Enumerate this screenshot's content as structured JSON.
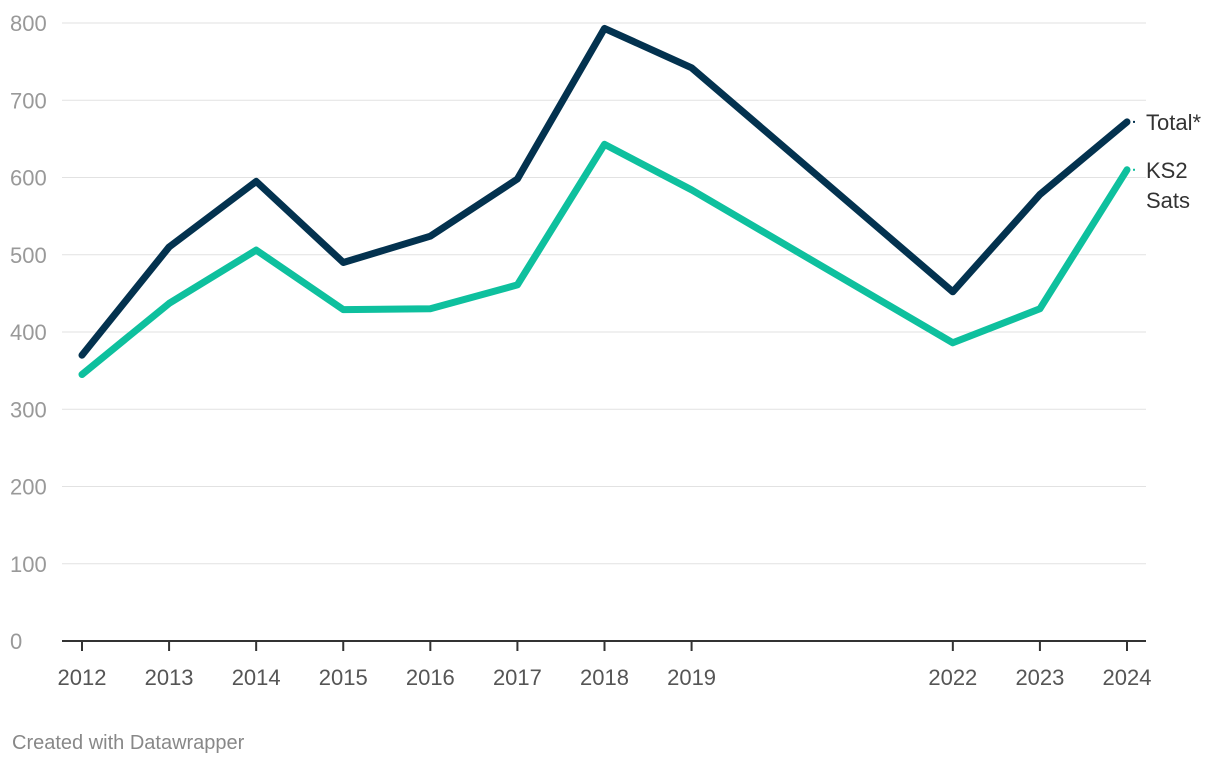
{
  "chart_data": {
    "type": "line",
    "x": [
      2012,
      2013,
      2014,
      2015,
      2016,
      2017,
      2018,
      2019,
      2022,
      2023,
      2024
    ],
    "xticks": [
      2012,
      2013,
      2014,
      2015,
      2016,
      2017,
      2018,
      2019,
      2022,
      2023,
      2024
    ],
    "yticks": [
      0,
      100,
      200,
      300,
      400,
      500,
      600,
      700,
      800
    ],
    "xlim": [
      2012,
      2024
    ],
    "ylim": [
      0,
      800
    ],
    "grid": true,
    "legend": "direct labels at line ends, right",
    "series": [
      {
        "name": "Total*",
        "color": "#03324f",
        "values": [
          370,
          510,
          595,
          490,
          524,
          598,
          793,
          742,
          452,
          578,
          672
        ]
      },
      {
        "name": "KS2 Sats",
        "color": "#0ec09e",
        "values": [
          345,
          437,
          506,
          429,
          430,
          461,
          643,
          584,
          386,
          430,
          610
        ]
      }
    ]
  },
  "footer": {
    "credit": "Created with Datawrapper"
  },
  "colors": {
    "total": "#03324f",
    "ks2": "#0ec09e",
    "grid": "#e2e2e2"
  }
}
